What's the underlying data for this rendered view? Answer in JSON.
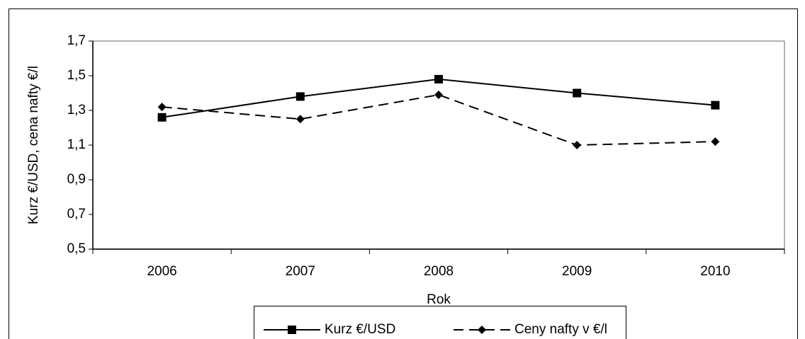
{
  "chart_data": {
    "type": "line",
    "x_label": "Rok",
    "y_label": "Kurz €/USD, cena nafty €/l",
    "categories": [
      "2006",
      "2007",
      "2008",
      "2009",
      "2010"
    ],
    "series": [
      {
        "name": "Kurz €/USD",
        "color": "#000000",
        "line_style": "solid",
        "marker": "square",
        "values": [
          1.26,
          1.38,
          1.48,
          1.4,
          1.33
        ]
      },
      {
        "name": "Ceny nafty  v €/l",
        "color": "#000000",
        "line_style": "dashed",
        "marker": "diamond",
        "values": [
          1.32,
          1.25,
          1.39,
          1.1,
          1.12
        ]
      }
    ],
    "ylim": [
      0.5,
      1.7
    ],
    "yticks": [
      {
        "value": 0.5,
        "label": "0,5"
      },
      {
        "value": 0.7,
        "label": "0,7"
      },
      {
        "value": 0.9,
        "label": "0,9"
      },
      {
        "value": 1.1,
        "label": "1,1"
      },
      {
        "value": 1.3,
        "label": "1,3"
      },
      {
        "value": 1.5,
        "label": "1,5"
      },
      {
        "value": 1.7,
        "label": "1,7"
      }
    ],
    "grid": false,
    "legend": "bottom"
  }
}
